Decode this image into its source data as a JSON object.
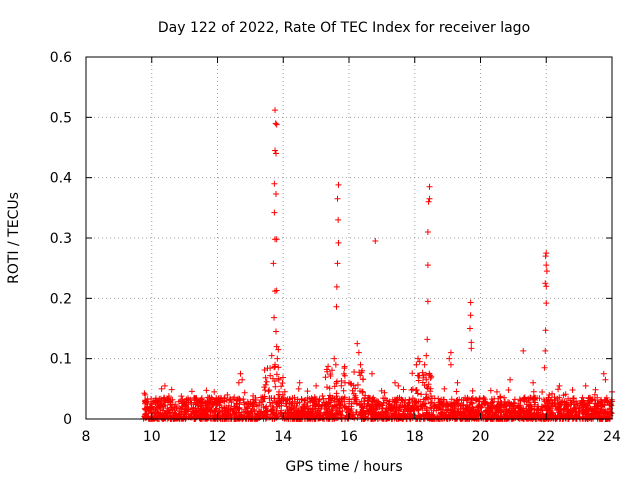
{
  "chart_data": {
    "type": "scatter",
    "title": "Day 122 of 2022, Rate Of TEC Index for receiver lago",
    "xlabel": "GPS time / hours",
    "ylabel": "ROTI / TECUs",
    "xlim": [
      8,
      24
    ],
    "ylim": [
      0,
      0.6
    ],
    "xticks": [
      8,
      10,
      12,
      14,
      16,
      18,
      20,
      22,
      24
    ],
    "xtick_labels": [
      "8",
      "10",
      "12",
      "14",
      "16",
      "18",
      "20",
      "22",
      "24"
    ],
    "yticks": [
      0,
      0.1,
      0.2,
      0.3,
      0.4,
      0.5,
      0.6
    ],
    "ytick_labels": [
      "0",
      "0.1",
      "0.2",
      "0.3",
      "0.4",
      "0.5",
      "0.6"
    ],
    "grid": true,
    "marker": "+",
    "color": "#ff0000",
    "series": [
      {
        "name": "ROTI",
        "note": "dense band of low values 9.75-24 h (0-0.04 TECU) plus the prominent spikes below",
        "points": [
          [
            13.75,
            0.512
          ],
          [
            13.77,
            0.49
          ],
          [
            13.8,
            0.488
          ],
          [
            13.75,
            0.445
          ],
          [
            13.78,
            0.44
          ],
          [
            13.73,
            0.39
          ],
          [
            13.78,
            0.373
          ],
          [
            13.73,
            0.342
          ],
          [
            13.75,
            0.298
          ],
          [
            13.8,
            0.298
          ],
          [
            13.7,
            0.258
          ],
          [
            13.75,
            0.212
          ],
          [
            13.8,
            0.213
          ],
          [
            13.72,
            0.168
          ],
          [
            13.78,
            0.145
          ],
          [
            13.8,
            0.12
          ],
          [
            13.85,
            0.115
          ],
          [
            13.82,
            0.1
          ],
          [
            13.65,
            0.105
          ],
          [
            13.75,
            0.09
          ],
          [
            15.68,
            0.388
          ],
          [
            15.65,
            0.365
          ],
          [
            15.67,
            0.33
          ],
          [
            15.68,
            0.292
          ],
          [
            15.65,
            0.258
          ],
          [
            15.63,
            0.219
          ],
          [
            15.62,
            0.186
          ],
          [
            15.55,
            0.1
          ],
          [
            15.6,
            0.09
          ],
          [
            16.8,
            0.295
          ],
          [
            16.25,
            0.125
          ],
          [
            16.3,
            0.11
          ],
          [
            16.35,
            0.09
          ],
          [
            16.4,
            0.08
          ],
          [
            16.7,
            0.075
          ],
          [
            18.45,
            0.385
          ],
          [
            18.45,
            0.365
          ],
          [
            18.42,
            0.36
          ],
          [
            18.4,
            0.31
          ],
          [
            18.4,
            0.255
          ],
          [
            18.4,
            0.195
          ],
          [
            18.38,
            0.132
          ],
          [
            18.35,
            0.105
          ],
          [
            18.1,
            0.1
          ],
          [
            18.15,
            0.095
          ],
          [
            18.05,
            0.09
          ],
          [
            18.3,
            0.09
          ],
          [
            18.5,
            0.07
          ],
          [
            19.7,
            0.193
          ],
          [
            19.7,
            0.172
          ],
          [
            19.68,
            0.15
          ],
          [
            19.72,
            0.127
          ],
          [
            19.72,
            0.117
          ],
          [
            19.1,
            0.11
          ],
          [
            19.05,
            0.1
          ],
          [
            19.1,
            0.09
          ],
          [
            21.3,
            0.113
          ],
          [
            22.0,
            0.275
          ],
          [
            21.98,
            0.27
          ],
          [
            22.0,
            0.255
          ],
          [
            22.02,
            0.245
          ],
          [
            21.97,
            0.225
          ],
          [
            22.0,
            0.22
          ],
          [
            22.0,
            0.192
          ],
          [
            21.98,
            0.147
          ],
          [
            21.97,
            0.113
          ],
          [
            21.95,
            0.085
          ],
          [
            23.75,
            0.075
          ],
          [
            23.8,
            0.065
          ],
          [
            12.7,
            0.075
          ],
          [
            12.75,
            0.065
          ],
          [
            12.65,
            0.06
          ],
          [
            10.4,
            0.055
          ],
          [
            10.3,
            0.05
          ],
          [
            11.9,
            0.045
          ],
          [
            12.3,
            0.04
          ],
          [
            17.4,
            0.06
          ],
          [
            17.5,
            0.055
          ],
          [
            20.9,
            0.065
          ],
          [
            21.6,
            0.06
          ],
          [
            22.4,
            0.055
          ],
          [
            23.2,
            0.055
          ],
          [
            14.5,
            0.06
          ],
          [
            15.0,
            0.055
          ],
          [
            19.3,
            0.06
          ],
          [
            18.9,
            0.05
          ],
          [
            20.5,
            0.045
          ],
          [
            17.9,
            0.048
          ],
          [
            16.0,
            0.06
          ],
          [
            22.8,
            0.048
          ],
          [
            24.0,
            0.045
          ],
          [
            11.3,
            0.035
          ],
          [
            10.9,
            0.038
          ],
          [
            9.8,
            0.04
          ]
        ]
      }
    ]
  }
}
